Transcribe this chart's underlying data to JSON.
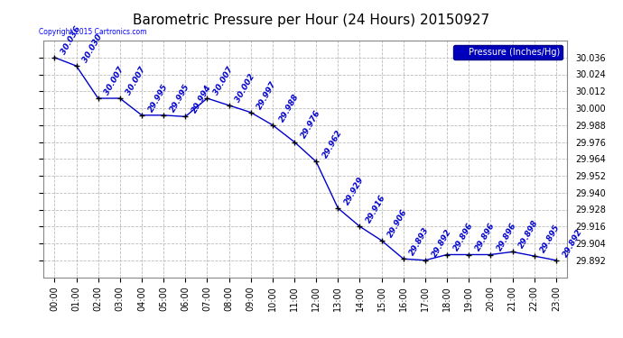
{
  "title": "Barometric Pressure per Hour (24 Hours) 20150927",
  "ylabel": "Pressure (Inches/Hg)",
  "copyright_text": "Copyright 2015 Cartronics.com",
  "hours": [
    0,
    1,
    2,
    3,
    4,
    5,
    6,
    7,
    8,
    9,
    10,
    11,
    12,
    13,
    14,
    15,
    16,
    17,
    18,
    19,
    20,
    21,
    22,
    23
  ],
  "hour_labels": [
    "00:00",
    "01:00",
    "02:00",
    "03:00",
    "04:00",
    "05:00",
    "06:00",
    "07:00",
    "08:00",
    "09:00",
    "10:00",
    "11:00",
    "12:00",
    "13:00",
    "14:00",
    "15:00",
    "16:00",
    "17:00",
    "18:00",
    "19:00",
    "20:00",
    "21:00",
    "22:00",
    "23:00"
  ],
  "values": [
    30.036,
    30.03,
    30.007,
    30.007,
    29.995,
    29.995,
    29.994,
    30.007,
    30.002,
    29.997,
    29.988,
    29.976,
    29.962,
    29.929,
    29.916,
    29.906,
    29.893,
    29.892,
    29.896,
    29.896,
    29.896,
    29.898,
    29.895,
    29.892
  ],
  "ylim_min": 29.88,
  "ylim_max": 30.048,
  "line_color": "#0000cc",
  "marker_color": "#000000",
  "label_color": "#0000cc",
  "grid_color": "#bbbbbb",
  "bg_color": "#ffffff",
  "legend_bg": "#0000bb",
  "legend_text_color": "#ffffff",
  "title_fontsize": 11,
  "tick_fontsize": 7,
  "annotation_fontsize": 6.5,
  "ytick_values": [
    29.892,
    29.904,
    29.916,
    29.928,
    29.94,
    29.952,
    29.964,
    29.976,
    29.988,
    30.0,
    30.012,
    30.024,
    30.036
  ]
}
